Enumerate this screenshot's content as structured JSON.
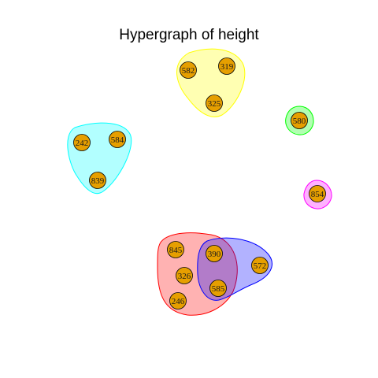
{
  "title": "Hypergraph of height",
  "vertex_fill": "#E69F00",
  "vertex_stroke": "#000000",
  "vertices": [
    {
      "id": "582"
    },
    {
      "id": "319"
    },
    {
      "id": "325"
    },
    {
      "id": "580"
    },
    {
      "id": "242"
    },
    {
      "id": "584"
    },
    {
      "id": "839"
    },
    {
      "id": "854"
    },
    {
      "id": "845"
    },
    {
      "id": "390"
    },
    {
      "id": "326"
    },
    {
      "id": "585"
    },
    {
      "id": "246"
    },
    {
      "id": "572"
    }
  ],
  "hyperedges": [
    {
      "members": [
        "582",
        "319",
        "325"
      ],
      "fill": "#FFFF00",
      "stroke": "#FFFF00"
    },
    {
      "members": [
        "580"
      ],
      "fill": "#00FF00",
      "stroke": "#00FF00"
    },
    {
      "members": [
        "242",
        "584",
        "839"
      ],
      "fill": "#00FFFF",
      "stroke": "#00FFFF"
    },
    {
      "members": [
        "854"
      ],
      "fill": "#FF00FF",
      "stroke": "#FF00FF"
    },
    {
      "members": [
        "845",
        "390",
        "326",
        "585",
        "246"
      ],
      "fill": "#FF0000",
      "stroke": "#FF0000"
    },
    {
      "members": [
        "390",
        "585",
        "572"
      ],
      "fill": "#0000FF",
      "stroke": "#0000FF"
    }
  ]
}
